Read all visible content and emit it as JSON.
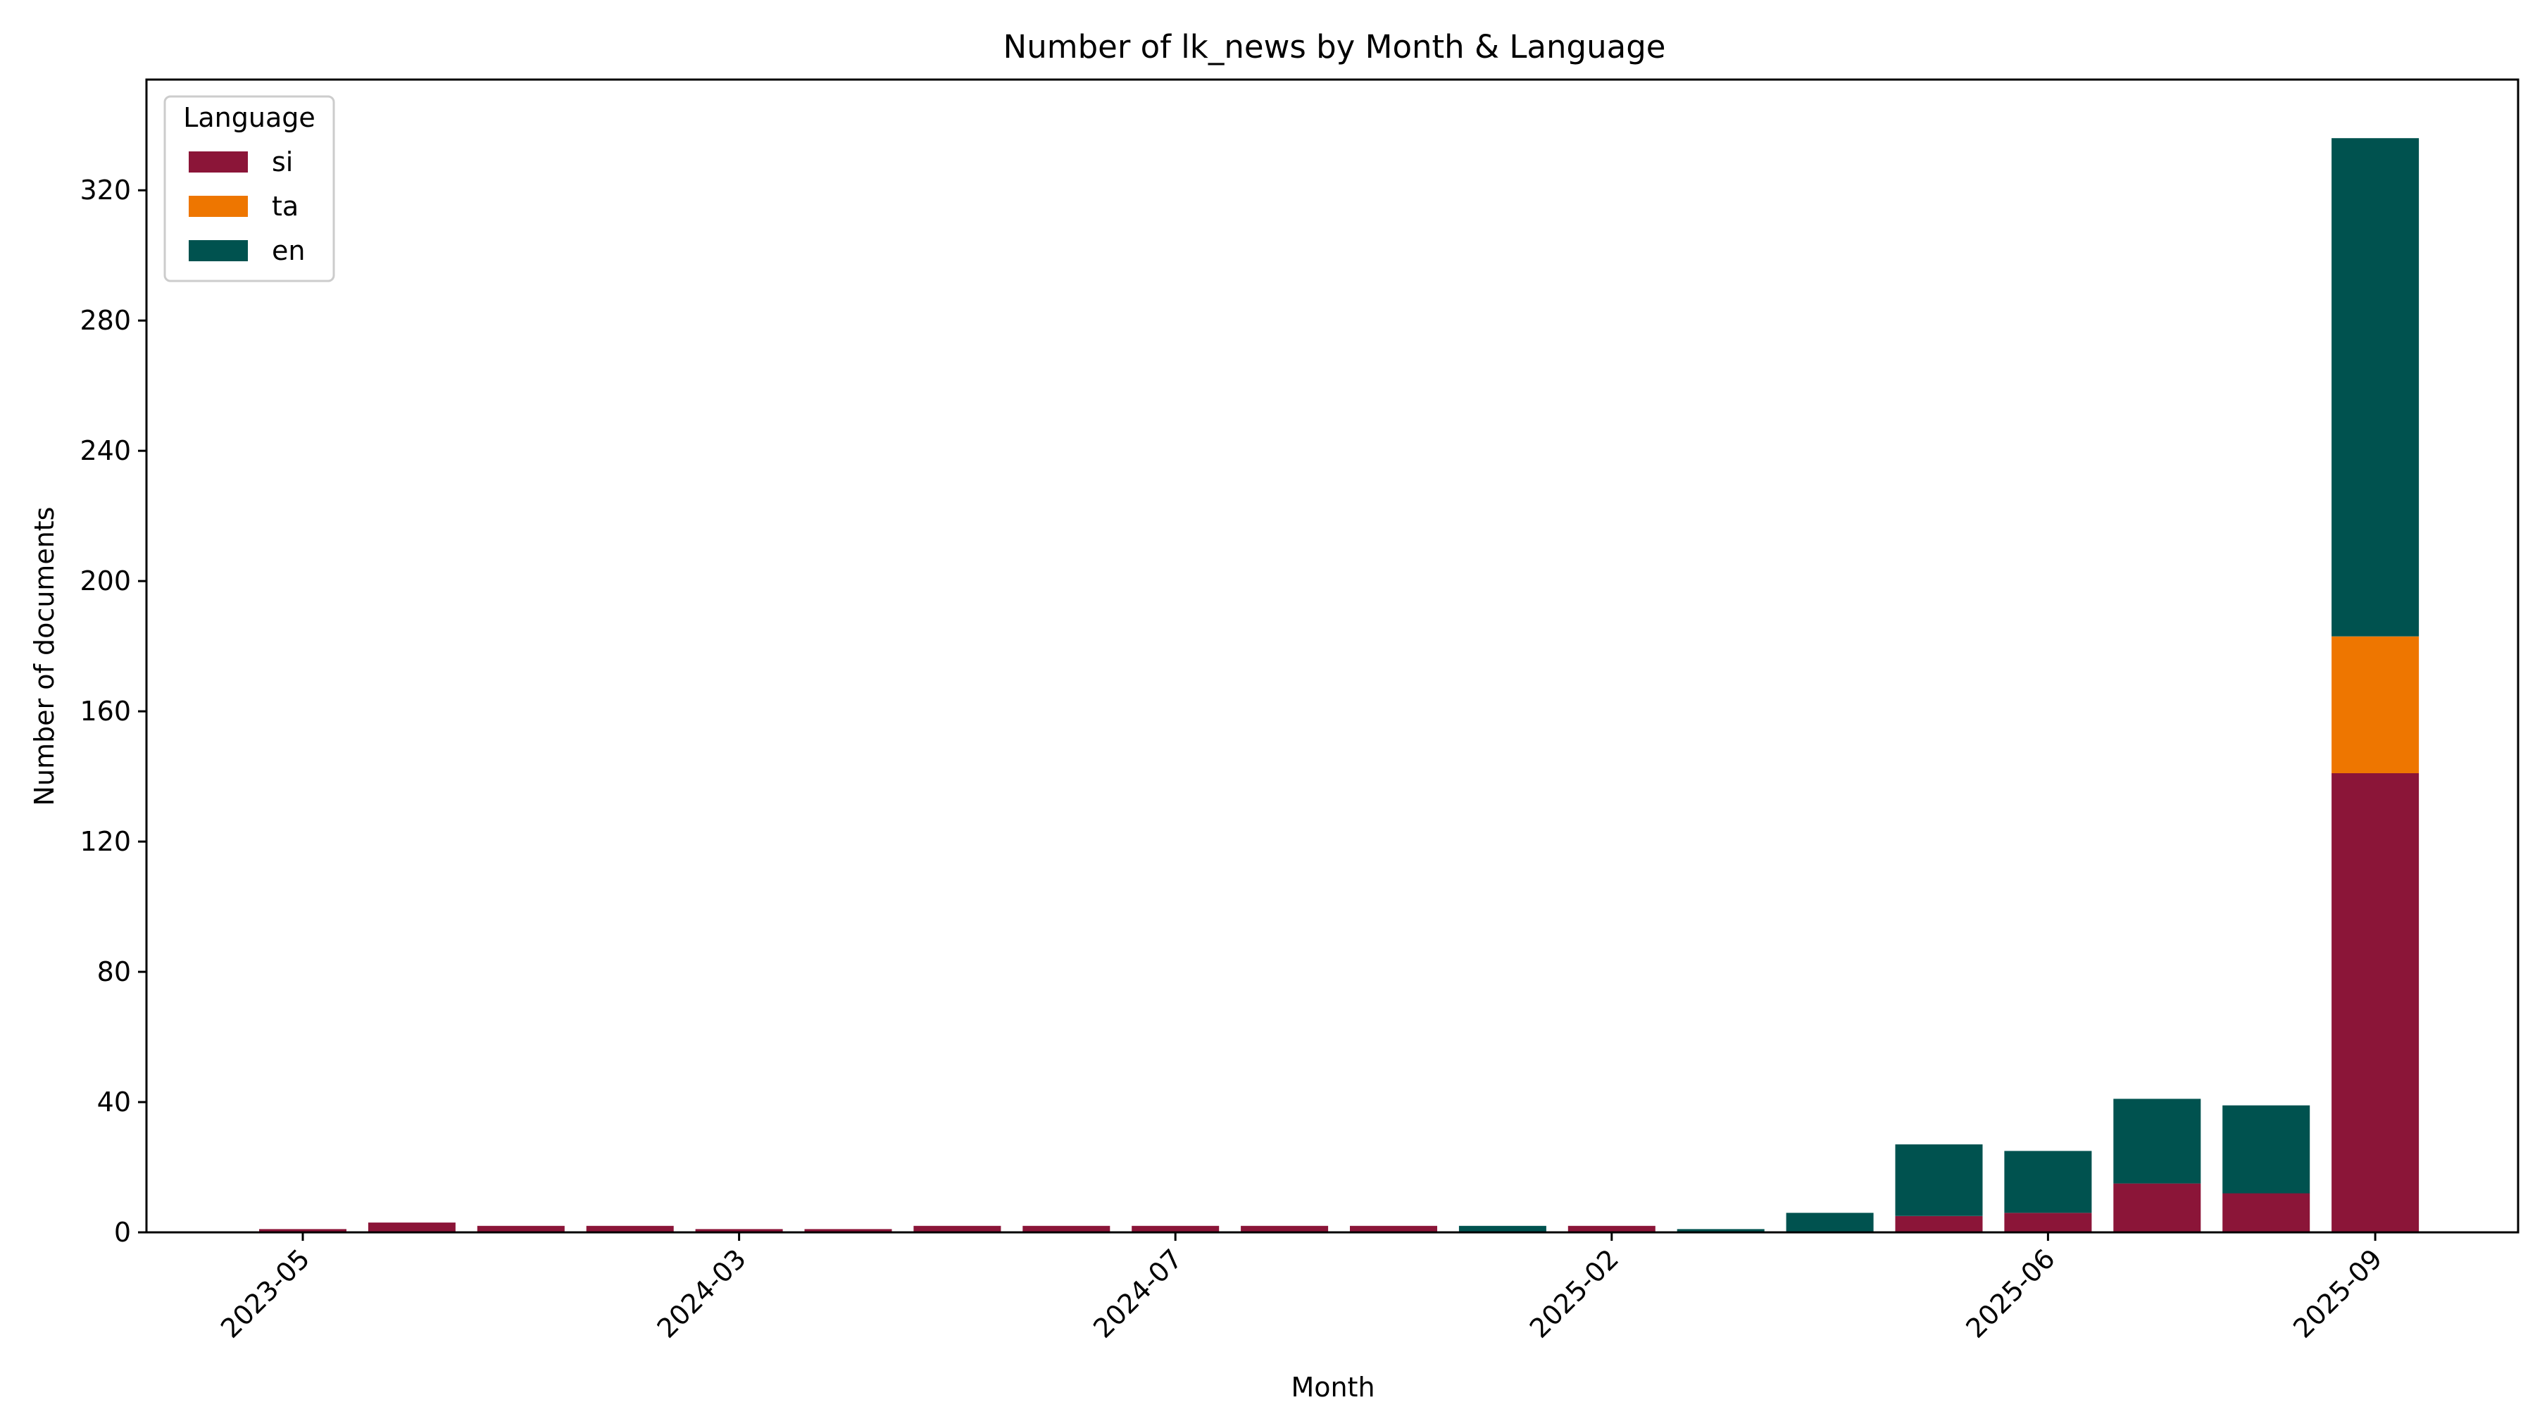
{
  "chart_data": {
    "type": "bar",
    "stacked": true,
    "title": "Number of lk_news by Month & Language",
    "xlabel": "Month",
    "ylabel": "Number of documents",
    "ylim": [
      0,
      354
    ],
    "yticks": [
      0,
      40,
      80,
      120,
      160,
      200,
      240,
      280,
      320
    ],
    "xticks": [
      {
        "index": 0,
        "label": "2023-05"
      },
      {
        "index": 4,
        "label": "2024-03"
      },
      {
        "index": 8,
        "label": "2024-07"
      },
      {
        "index": 12,
        "label": "2025-02"
      },
      {
        "index": 16,
        "label": "2025-06"
      },
      {
        "index": 19,
        "label": "2025-09"
      }
    ],
    "bar_count": 20,
    "series": [
      {
        "name": "si",
        "color": "#8B1538",
        "values": [
          1,
          3,
          2,
          2,
          1,
          1,
          2,
          2,
          2,
          2,
          2,
          0,
          2,
          0,
          0,
          5,
          6,
          15,
          12,
          141
        ]
      },
      {
        "name": "ta",
        "color": "#EE7600",
        "values": [
          0,
          0,
          0,
          0,
          0,
          0,
          0,
          0,
          0,
          0,
          0,
          0,
          0,
          0,
          0,
          0,
          0,
          0,
          0,
          42
        ]
      },
      {
        "name": "en",
        "color": "#00524F",
        "values": [
          0,
          0,
          0,
          0,
          0,
          0,
          0,
          0,
          0,
          0,
          0,
          2,
          0,
          1,
          6,
          22,
          19,
          26,
          27,
          153
        ]
      }
    ],
    "legend": {
      "title": "Language",
      "position": "top-left"
    },
    "grid": false
  }
}
